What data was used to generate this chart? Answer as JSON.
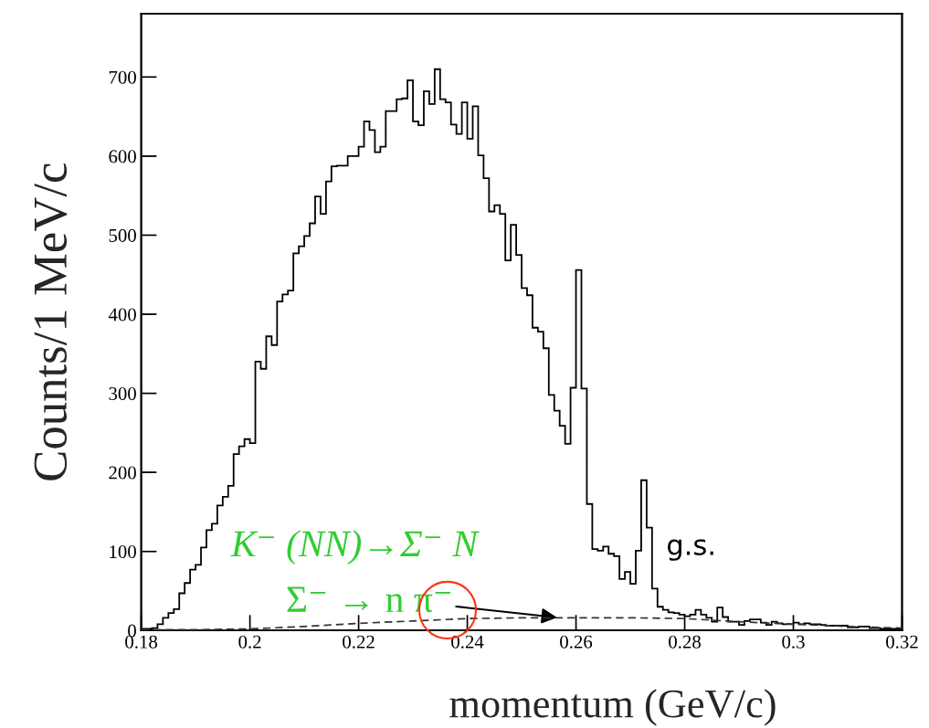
{
  "chart_data": [
    {
      "type": "histogram",
      "xlabel": "momentum (GeV/c)",
      "ylabel": "Counts/1 MeV/c",
      "xlim": [
        0.18,
        0.32
      ],
      "xticks": [
        0.18,
        0.2,
        0.22,
        0.24,
        0.26,
        0.28,
        0.3,
        0.32
      ],
      "ylim": [
        0,
        780
      ],
      "yticks": [
        0,
        100,
        200,
        300,
        400,
        500,
        600,
        700
      ],
      "color": "#000000",
      "bins": [
        0.18,
        0.181,
        0.182,
        0.183,
        0.184,
        0.185,
        0.186,
        0.187,
        0.188,
        0.189,
        0.19,
        0.191,
        0.192,
        0.193,
        0.194,
        0.195,
        0.196,
        0.197,
        0.198,
        0.199,
        0.2,
        0.201,
        0.202,
        0.203,
        0.204,
        0.205,
        0.206,
        0.207,
        0.208,
        0.209,
        0.21,
        0.211,
        0.212,
        0.213,
        0.214,
        0.215,
        0.216,
        0.217,
        0.218,
        0.219,
        0.22,
        0.221,
        0.222,
        0.223,
        0.224,
        0.225,
        0.226,
        0.227,
        0.228,
        0.229,
        0.23,
        0.231,
        0.232,
        0.233,
        0.234,
        0.235,
        0.236,
        0.237,
        0.238,
        0.239,
        0.24,
        0.241,
        0.242,
        0.243,
        0.244,
        0.245,
        0.246,
        0.247,
        0.248,
        0.249,
        0.25,
        0.251,
        0.252,
        0.253,
        0.254,
        0.255,
        0.256,
        0.257,
        0.258,
        0.259,
        0.26,
        0.261,
        0.262,
        0.263,
        0.264,
        0.265,
        0.266,
        0.267,
        0.268,
        0.269,
        0.27,
        0.271,
        0.272,
        0.273,
        0.274,
        0.275,
        0.276,
        0.277,
        0.278,
        0.279,
        0.28,
        0.281,
        0.282,
        0.283,
        0.284,
        0.285,
        0.286,
        0.287,
        0.288,
        0.289,
        0.29,
        0.291,
        0.292,
        0.293,
        0.294,
        0.295,
        0.296,
        0.297,
        0.298,
        0.299,
        0.3,
        0.301,
        0.302,
        0.303,
        0.304,
        0.305,
        0.306,
        0.307,
        0.308,
        0.309,
        0.31,
        0.311,
        0.312,
        0.313,
        0.314,
        0.315,
        0.316,
        0.317,
        0.318,
        0.319,
        0.32
      ],
      "values": [
        2,
        2,
        3,
        8,
        16,
        22,
        27,
        47,
        60,
        77,
        83,
        105,
        127,
        135,
        158,
        169,
        183,
        223,
        233,
        242,
        237,
        340,
        331,
        372,
        361,
        416,
        425,
        430,
        477,
        486,
        499,
        515,
        549,
        527,
        568,
        587,
        588,
        588,
        600,
        600,
        612,
        644,
        633,
        605,
        612,
        657,
        657,
        672,
        673,
        696,
        644,
        639,
        682,
        666,
        710,
        672,
        668,
        640,
        628,
        668,
        622,
        663,
        601,
        572,
        530,
        538,
        527,
        468,
        513,
        475,
        433,
        424,
        383,
        378,
        357,
        298,
        278,
        259,
        236,
        307,
        456,
        306,
        160,
        103,
        101,
        106,
        97,
        94,
        65,
        74,
        59,
        101,
        190,
        130,
        53,
        30,
        26,
        23,
        22,
        20,
        18,
        20,
        26,
        20,
        16,
        11,
        29,
        17,
        11,
        11,
        7,
        12,
        14,
        14,
        10,
        7,
        11,
        9,
        8,
        8,
        10,
        8,
        9,
        8,
        8,
        7,
        6,
        6,
        6,
        6,
        4,
        4,
        5,
        5,
        3,
        3,
        2,
        2,
        2,
        2
      ],
      "annotations": [
        "K⁻ (NN)→Σ⁻ N",
        "g.s."
      ]
    },
    {
      "type": "line",
      "tick_labels": false,
      "xlim": [
        0.18,
        0.32
      ],
      "xticks": [
        0.18,
        0.2,
        0.22,
        0.24,
        0.26,
        0.28,
        0.3,
        0.32
      ],
      "ylim": [
        0,
        780
      ],
      "yticks": [
        0,
        100,
        200,
        300,
        400,
        500,
        600,
        700
      ],
      "color": "#333333",
      "line_style": "dashed",
      "x": [
        0.18,
        0.19,
        0.2,
        0.21,
        0.22,
        0.23,
        0.24,
        0.25,
        0.26,
        0.27,
        0.28,
        0.29,
        0.3,
        0.31,
        0.32
      ],
      "values": [
        1,
        1,
        2,
        5,
        9,
        12,
        15,
        16,
        16,
        16,
        15,
        11,
        8,
        5,
        3
      ],
      "annotations": [
        {
          "text": "Σ⁻ → n π⁻",
          "x": 0.257,
          "y": 16
        }
      ]
    }
  ]
}
